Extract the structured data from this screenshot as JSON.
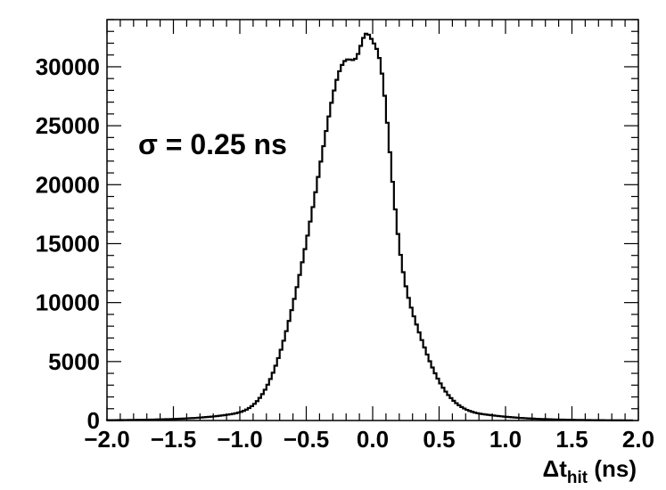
{
  "chart_data": {
    "type": "histogram",
    "xlabel_main": "Δt",
    "xlabel_sub": "hit",
    "xlabel_unit": " (ns)",
    "ylabel": "",
    "xlim": [
      -2.0,
      2.0
    ],
    "ylim": [
      0,
      34000
    ],
    "x_ticks": [
      -2.0,
      -1.5,
      -1.0,
      -0.5,
      0.0,
      0.5,
      1.0,
      1.5,
      2.0
    ],
    "x_tick_labels": [
      "−2.0",
      "−1.5",
      "−1.0",
      "−0.5",
      "0.0",
      "0.5",
      "1.0",
      "1.5",
      "2.0"
    ],
    "y_ticks": [
      0,
      5000,
      10000,
      15000,
      20000,
      25000,
      30000
    ],
    "y_tick_labels": [
      "0",
      "5000",
      "10000",
      "15000",
      "20000",
      "25000",
      "30000"
    ],
    "annotation": "σ = 0.25 ns",
    "grid": false,
    "line_color": "#000000",
    "bin_width": 0.02,
    "bin_centers": [
      -1.99,
      -1.97,
      -1.95,
      -1.93,
      -1.91,
      -1.89,
      -1.87,
      -1.85,
      -1.83,
      -1.81,
      -1.79,
      -1.77,
      -1.75,
      -1.73,
      -1.71,
      -1.69,
      -1.67,
      -1.65,
      -1.63,
      -1.61,
      -1.59,
      -1.57,
      -1.55,
      -1.53,
      -1.51,
      -1.49,
      -1.47,
      -1.45,
      -1.43,
      -1.41,
      -1.39,
      -1.37,
      -1.35,
      -1.33,
      -1.31,
      -1.29,
      -1.27,
      -1.25,
      -1.23,
      -1.21,
      -1.19,
      -1.17,
      -1.15,
      -1.13,
      -1.11,
      -1.09,
      -1.07,
      -1.05,
      -1.03,
      -1.01,
      -0.99,
      -0.97,
      -0.95,
      -0.93,
      -0.91,
      -0.89,
      -0.87,
      -0.85,
      -0.83,
      -0.81,
      -0.79,
      -0.77,
      -0.75,
      -0.73,
      -0.71,
      -0.69,
      -0.67,
      -0.65,
      -0.63,
      -0.61,
      -0.59,
      -0.57,
      -0.55,
      -0.53,
      -0.51,
      -0.49,
      -0.47,
      -0.45,
      -0.43,
      -0.41,
      -0.39,
      -0.37,
      -0.35,
      -0.33,
      -0.31,
      -0.29,
      -0.27,
      -0.25,
      -0.23,
      -0.21,
      -0.19,
      -0.17,
      -0.15,
      -0.13,
      -0.11,
      -0.09,
      -0.07,
      -0.05,
      -0.03,
      -0.01,
      0.01,
      0.03,
      0.05,
      0.07,
      0.09,
      0.11,
      0.13,
      0.15,
      0.17,
      0.19,
      0.21,
      0.23,
      0.25,
      0.27,
      0.29,
      0.31,
      0.33,
      0.35,
      0.37,
      0.39,
      0.41,
      0.43,
      0.45,
      0.47,
      0.49,
      0.51,
      0.53,
      0.55,
      0.57,
      0.59,
      0.61,
      0.63,
      0.65,
      0.67,
      0.69,
      0.71,
      0.73,
      0.75,
      0.77,
      0.79,
      0.81,
      0.83,
      0.85,
      0.87,
      0.89,
      0.91,
      0.93,
      0.95,
      0.97,
      0.99,
      1.01,
      1.03,
      1.05,
      1.07,
      1.09,
      1.11,
      1.13,
      1.15,
      1.17,
      1.19,
      1.21,
      1.23,
      1.25,
      1.27,
      1.29,
      1.31,
      1.33,
      1.35,
      1.37,
      1.39,
      1.41,
      1.43,
      1.45,
      1.47,
      1.49,
      1.51,
      1.53,
      1.55,
      1.57,
      1.59,
      1.61,
      1.63,
      1.65,
      1.67,
      1.69,
      1.71,
      1.73,
      1.75,
      1.77,
      1.79,
      1.81,
      1.83,
      1.85,
      1.87,
      1.89,
      1.91,
      1.93,
      1.95,
      1.97,
      1.99
    ],
    "bin_counts": [
      30,
      31,
      33,
      35,
      38,
      40,
      42,
      44,
      47,
      50,
      53,
      56,
      60,
      63,
      68,
      72,
      76,
      81,
      87,
      92,
      98,
      104,
      111,
      118,
      126,
      134,
      143,
      152,
      163,
      173,
      185,
      197,
      210,
      224,
      240,
      256,
      273,
      292,
      312,
      333,
      356,
      380,
      406,
      434,
      464,
      496,
      530,
      568,
      613,
      668,
      737,
      822,
      928,
      1059,
      1219,
      1413,
      1645,
      1920,
      2241,
      2613,
      3037,
      3516,
      4052,
      4645,
      5295,
      6002,
      6765,
      7580,
      8445,
      9357,
      10313,
      11310,
      12346,
      13420,
      14532,
      15683,
      16872,
      18100,
      19363,
      20653,
      21960,
      23267,
      24551,
      25787,
      26944,
      27990,
      28893,
      29622,
      30156,
      30487,
      30620,
      30609,
      30567,
      30673,
      31085,
      31772,
      32448,
      32803,
      32720,
      32369,
      31976,
      31519,
      30741,
      29417,
      27541,
      25251,
      22751,
      20245,
      17901,
      15822,
      14049,
      12580,
      11383,
      10402,
      9573,
      8834,
      8141,
      7473,
      6824,
      6196,
      5595,
      5027,
      4496,
      4005,
      3555,
      3147,
      2779,
      2450,
      2157,
      1897,
      1669,
      1468,
      1294,
      1143,
      1014,
      904,
      812,
      735,
      671,
      619,
      576,
      540,
      509,
      480,
      453,
      427,
      401,
      377,
      353,
      331,
      310,
      290,
      271,
      254,
      237,
      222,
      207,
      193,
      181,
      169,
      158,
      147,
      137,
      128,
      120,
      112,
      104,
      97,
      91,
      85,
      79,
      74,
      69,
      64,
      60,
      56,
      52,
      49,
      46,
      43,
      40,
      37,
      35,
      32,
      30,
      28,
      27,
      25,
      23,
      22,
      21,
      19,
      18,
      17,
      16,
      15,
      14,
      13
    ]
  }
}
